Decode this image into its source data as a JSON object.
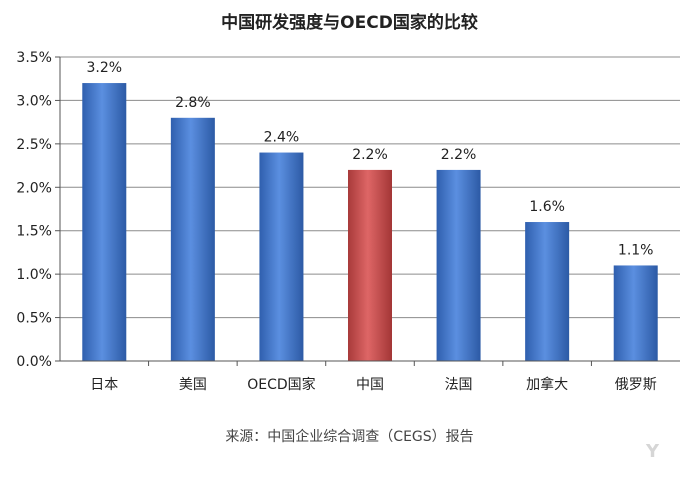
{
  "chart_data": {
    "type": "bar",
    "title": "中国研发强度与OECD国家的比较",
    "categories": [
      "日本",
      "美国",
      "OECD国家",
      "中国",
      "法国",
      "加拿大",
      "俄罗斯"
    ],
    "values": [
      3.2,
      2.8,
      2.4,
      2.2,
      2.2,
      1.6,
      1.1
    ],
    "data_labels": [
      "3.2%",
      "2.8%",
      "2.4%",
      "2.2%",
      "2.2%",
      "1.6%",
      "1.1%"
    ],
    "yticks": [
      "0.0%",
      "0.5%",
      "1.0%",
      "1.5%",
      "2.0%",
      "2.5%",
      "3.0%",
      "3.5%"
    ],
    "ylim": [
      0,
      3.5
    ],
    "grid": true,
    "xlabel": "",
    "ylabel": "",
    "bar_color": "#3f74c7",
    "highlight_color": "#c84a4a",
    "highlight_category": "中国"
  },
  "source_text": "来源：中国企业综合调查（CEGS）报告",
  "watermark_text": "Y"
}
